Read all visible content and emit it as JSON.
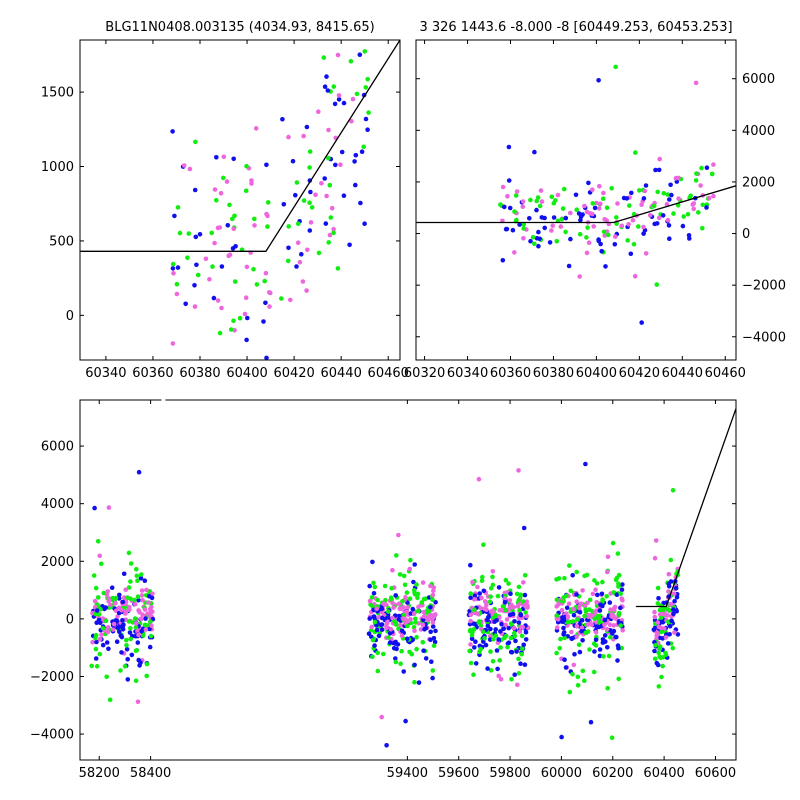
{
  "colors": {
    "blue": "#1010ee",
    "green": "#10ee10",
    "pink": "#ee66dd",
    "line": "#000000"
  },
  "chart_data": [
    {
      "type": "scatter",
      "title": "BLG11N0408.003135 (4034.93, 8415.65)",
      "xlim": [
        60329,
        60465
      ],
      "ylim": [
        -300,
        1850
      ],
      "x_ticks": [
        60340,
        60360,
        60380,
        60400,
        60420,
        60440,
        60460
      ],
      "y_ticks": [
        0,
        500,
        1000,
        1500
      ],
      "y_axis_side": "left",
      "model_line": {
        "x": [
          60329,
          60408,
          60465
        ],
        "y": [
          430,
          430,
          1850
        ]
      },
      "spread": {
        "x_center": 60410,
        "x_half": 42,
        "y_floor": -250,
        "y_top": 1850,
        "n": 180
      }
    },
    {
      "type": "scatter",
      "title": "3 326 1443.6 -8.000 -8 [60449.253, 60453.253]",
      "xlim": [
        60316,
        60465
      ],
      "ylim": [
        -4900,
        7500
      ],
      "x_ticks": [
        60320,
        60340,
        60360,
        60380,
        60400,
        60420,
        60440,
        60460
      ],
      "y_ticks": [
        -4000,
        -2000,
        0,
        2000,
        4000,
        6000
      ],
      "y_axis_side": "right",
      "model_line": {
        "x": [
          60316,
          60408,
          60465
        ],
        "y": [
          430,
          430,
          1850
        ]
      },
      "spread": {
        "x_center": 60405,
        "x_half": 50,
        "y_center": 300,
        "y_sd": 700,
        "n": 220
      }
    },
    {
      "type": "scatter",
      "title": "",
      "xlim": [
        58125,
        60680
      ],
      "ylim": [
        -4900,
        7600
      ],
      "x_ticks": [
        58200,
        58400,
        59400,
        59600,
        59800,
        60000,
        60200,
        60400,
        60600
      ],
      "y_ticks": [
        -4000,
        -2000,
        0,
        2000,
        4000,
        6000
      ],
      "y_axis_side": "left",
      "axis_break_x": 58450,
      "model_line": {
        "x": [
          60290,
          60408,
          60680
        ],
        "y": [
          430,
          430,
          7300
        ]
      },
      "seasons": [
        {
          "x_start": 58170,
          "x_end": 58410,
          "n": 260
        },
        {
          "x_start": 59250,
          "x_end": 59510,
          "n": 300
        },
        {
          "x_start": 59640,
          "x_end": 59870,
          "n": 280
        },
        {
          "x_start": 59980,
          "x_end": 60240,
          "n": 300
        },
        {
          "x_start": 60360,
          "x_end": 60455,
          "n": 140
        }
      ]
    }
  ]
}
